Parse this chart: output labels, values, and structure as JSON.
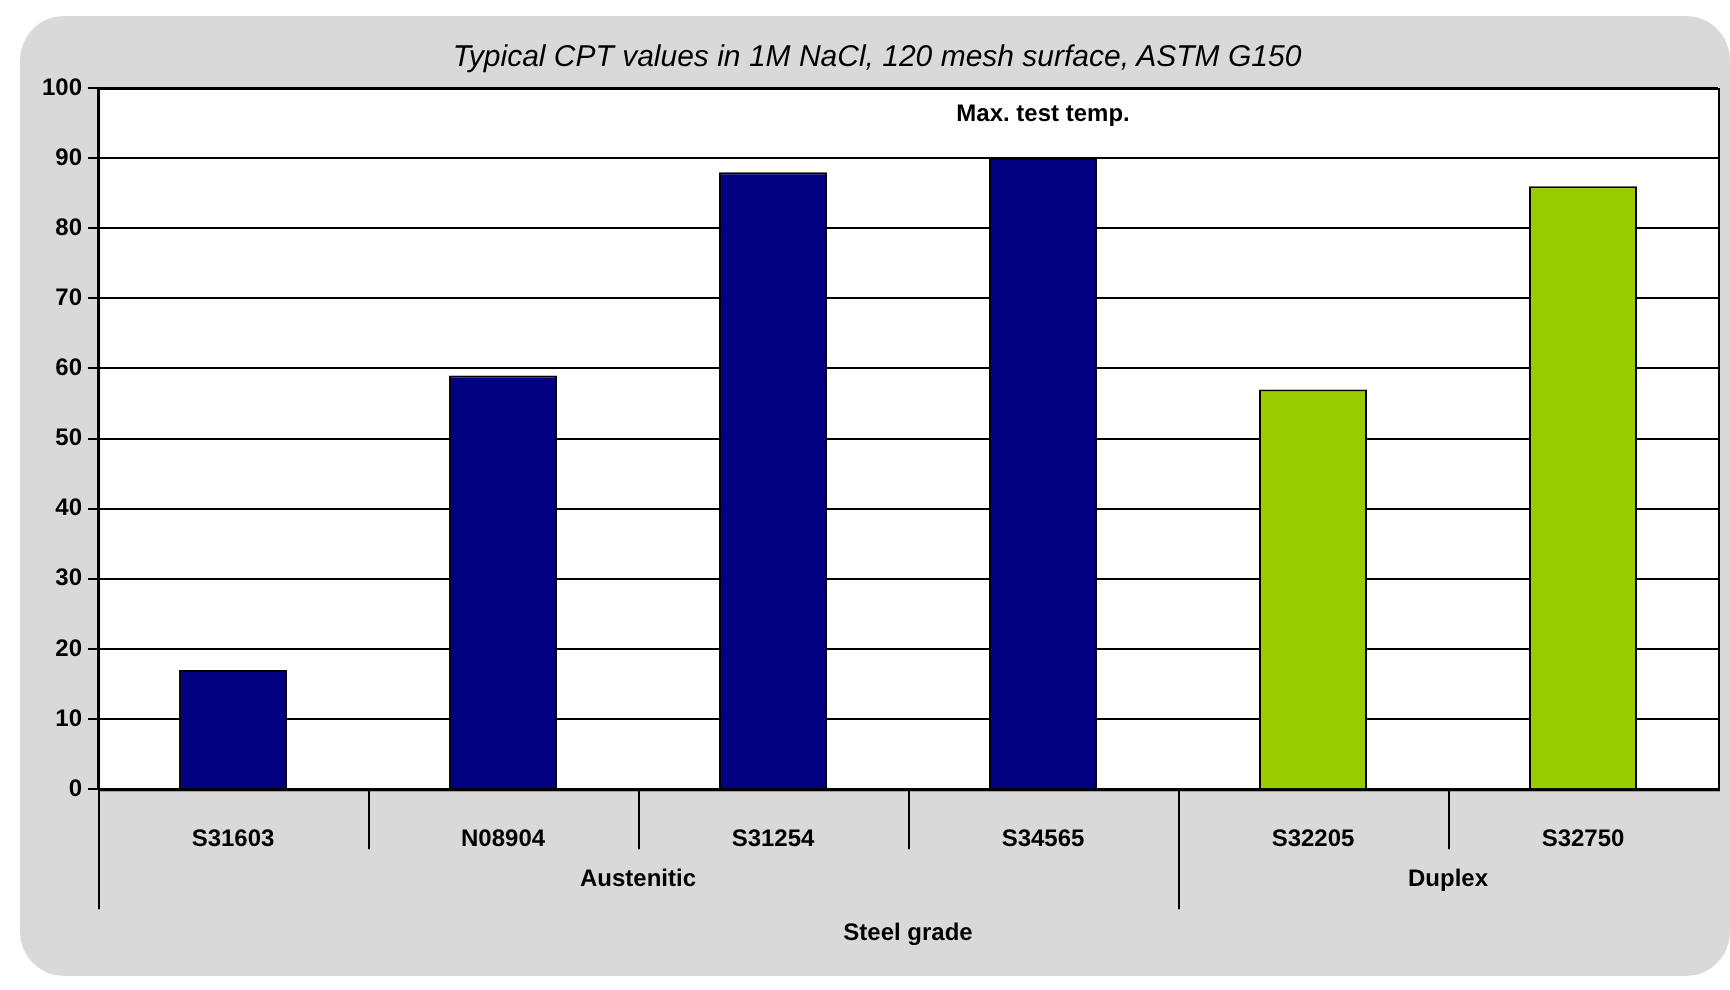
{
  "chart_data": {
    "type": "bar",
    "title": "Typical CPT values in 1M NaCl, 120 mesh surface, ASTM G150",
    "xlabel": "Steel grade",
    "categories": [
      "S31603",
      "N08904",
      "S31254",
      "S34565",
      "S32205",
      "S32750"
    ],
    "values": [
      17,
      59,
      88,
      90,
      57,
      86
    ],
    "colors": [
      "#000080",
      "#000080",
      "#000080",
      "#000080",
      "#99cc00",
      "#99cc00"
    ],
    "ylim": [
      0,
      100
    ],
    "yticks": [
      0,
      10,
      20,
      30,
      40,
      50,
      60,
      70,
      80,
      90,
      100
    ],
    "grid": "y",
    "annotations": [
      {
        "text": "Max. test temp.",
        "x": "S34565",
        "y": 90
      },
      "Austenitic",
      "Duplex"
    ]
  }
}
